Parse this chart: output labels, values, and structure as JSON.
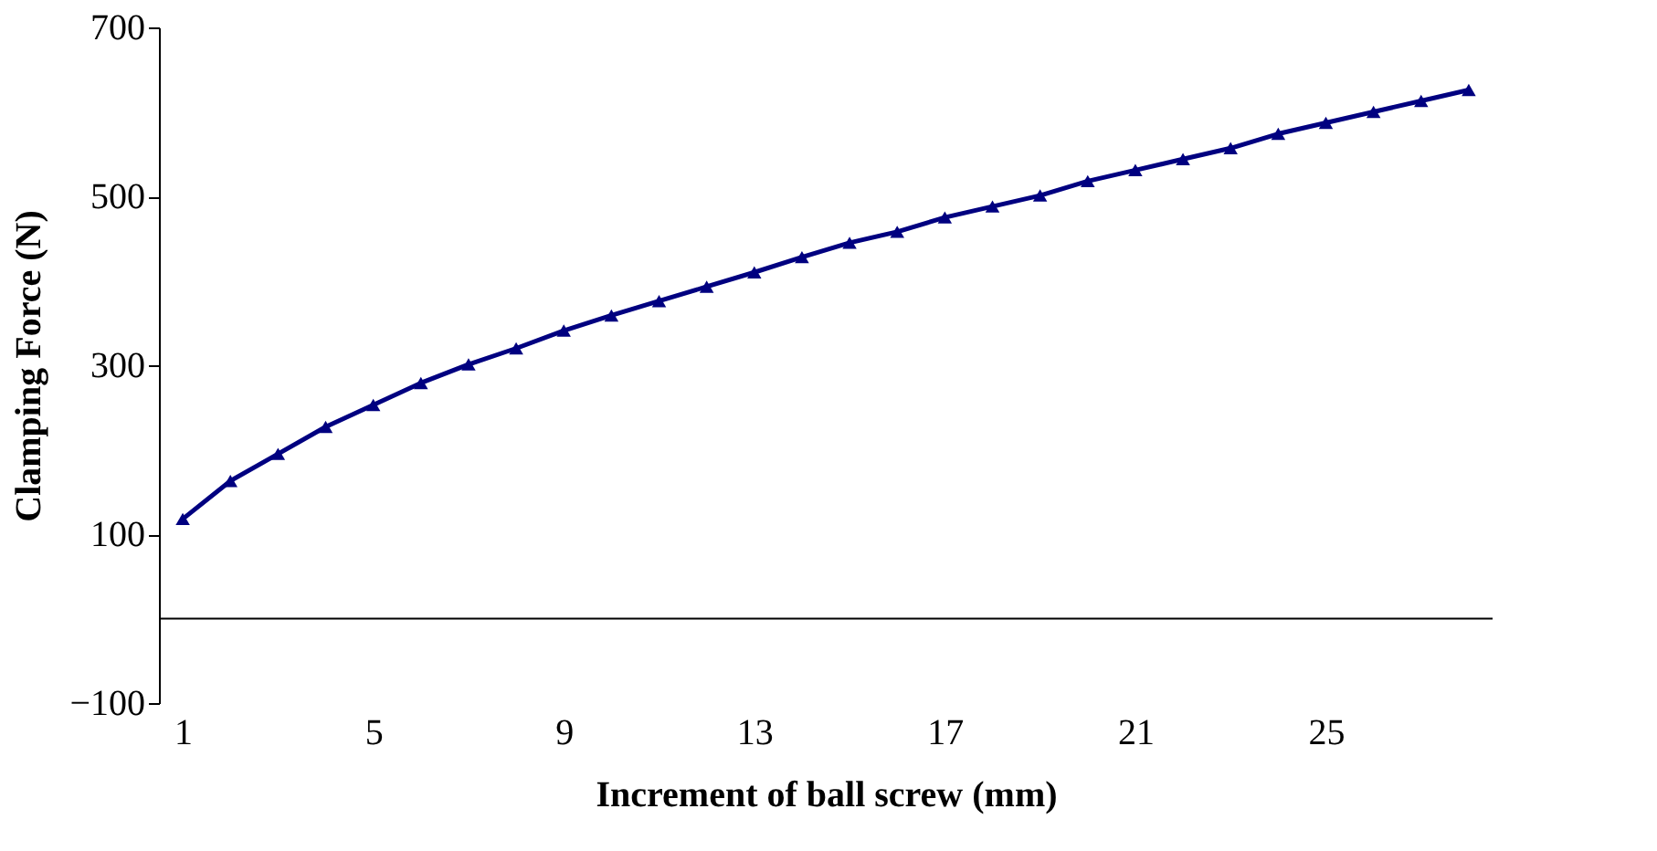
{
  "chart_data": {
    "type": "line",
    "xlabel": "Increment of ball screw (mm)",
    "ylabel": "Clamping Force (N)",
    "categories": [
      "1",
      null,
      null,
      null,
      "5",
      null,
      null,
      null,
      "9",
      null,
      null,
      null,
      "13",
      null,
      null,
      null,
      "17",
      null,
      null,
      null,
      "21",
      null,
      null,
      null,
      "25",
      null,
      null,
      null
    ],
    "series": [
      {
        "color": "#000080",
        "values": [
          118,
          163,
          195,
          227,
          253,
          279,
          301,
          320,
          341,
          359,
          376,
          393,
          410,
          428,
          445,
          458,
          475,
          488,
          501,
          518,
          531,
          544,
          557,
          574,
          587,
          600,
          613,
          626
        ]
      }
    ],
    "ylim": [
      -100,
      700
    ],
    "yticks": [
      -100,
      100,
      300,
      500,
      700
    ],
    "marker": "triangle",
    "line_style": "solid",
    "grid": false,
    "legend": false
  }
}
